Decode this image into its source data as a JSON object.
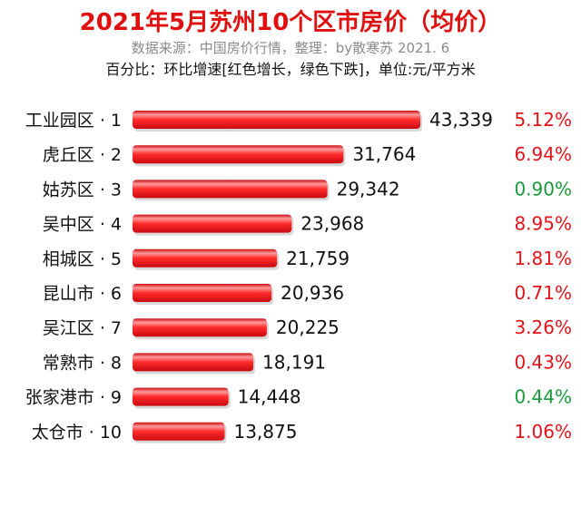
{
  "header": {
    "title": "2021年5月苏州10个区市房价（均价）",
    "source": "数据来源：中国房价行情，整理：by散寒苏  2021. 6",
    "note": "百分比：环比增速[红色增长，绿色下跌]，单位:元/平方米"
  },
  "colors": {
    "title": "#e01010",
    "bar": "#e8141a",
    "bar_highlight": "#ffb0b0",
    "increase": "#e0141a",
    "decrease": "#1a9a3a"
  },
  "chart_data": {
    "type": "bar",
    "orientation": "horizontal",
    "title": "2021年5月苏州10个区市房价（均价）",
    "subtitle": "数据来源：中国房价行情，整理：by散寒苏  2021. 6",
    "unit_note": "百分比：环比增速[红色增长，绿色下跌]，单位:元/平方米",
    "categories": [
      "工业园区 · 1",
      "虎丘区 · 2",
      "姑苏区 · 3",
      "吴中区 · 4",
      "相城区 · 5",
      "昆山市 · 6",
      "吴江区 · 7",
      "常熟市 · 8",
      "张家港市 · 9",
      "太仓市 · 10"
    ],
    "values": [
      43339,
      31764,
      29342,
      23968,
      21759,
      20936,
      20225,
      18191,
      14448,
      13875
    ],
    "value_labels": [
      "43,339",
      "31,764",
      "29,342",
      "23,968",
      "21,759",
      "20,936",
      "20,225",
      "18,191",
      "14,448",
      "13,875"
    ],
    "growth_labels": [
      "5.12%",
      "6.94%",
      "0.90%",
      "8.95%",
      "1.81%",
      "0.71%",
      "3.26%",
      "0.43%",
      "0.44%",
      "1.06%"
    ],
    "growth_direction": [
      "up",
      "up",
      "down",
      "up",
      "up",
      "up",
      "up",
      "up",
      "down",
      "up"
    ],
    "xlim": [
      0,
      43339
    ],
    "grid": false,
    "legend": "none"
  }
}
